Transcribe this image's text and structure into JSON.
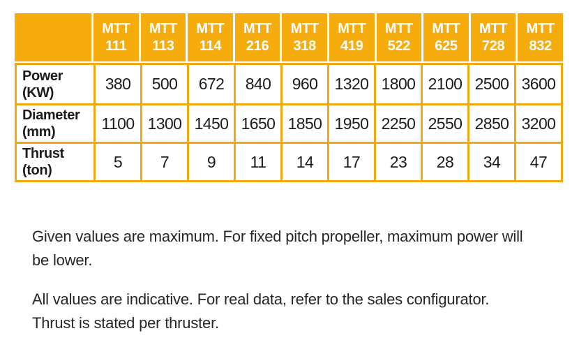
{
  "colors": {
    "header_bg": "#f7ac0e",
    "border_col": "#f2a90f",
    "header_text": "#ffffff",
    "body_text": "#1c1c1c"
  },
  "table": {
    "model_prefix": "MTT",
    "models": [
      "111",
      "113",
      "114",
      "216",
      "318",
      "419",
      "522",
      "625",
      "728",
      "832"
    ],
    "rows": [
      {
        "label_line1": "Power",
        "label_line2": "(KW)",
        "values": [
          380,
          500,
          672,
          840,
          960,
          1320,
          1800,
          2100,
          2500,
          3600
        ]
      },
      {
        "label_line1": "Diameter",
        "label_line2": "(mm)",
        "values": [
          1100,
          1300,
          1450,
          1650,
          1850,
          1950,
          2250,
          2550,
          2850,
          3200
        ]
      },
      {
        "label_line1": "Thrust",
        "label_line2": "(ton)",
        "values": [
          5,
          7,
          9,
          11,
          14,
          17,
          23,
          28,
          34,
          47
        ]
      }
    ]
  },
  "notes": [
    {
      "lines": [
        "Given values are maximum. For fixed pitch propeller, maximum power will",
        "be lower."
      ]
    },
    {
      "lines": [
        "All values are indicative. For real data, refer to the sales configurator.",
        "Thrust is stated per thruster."
      ]
    }
  ],
  "chart_data": {
    "type": "table",
    "title": "",
    "columns": [
      "",
      "MTT 111",
      "MTT 113",
      "MTT 114",
      "MTT 216",
      "MTT 318",
      "MTT 419",
      "MTT 522",
      "MTT 625",
      "MTT 728",
      "MTT 832"
    ],
    "rows": [
      [
        "Power (KW)",
        380,
        500,
        672,
        840,
        960,
        1320,
        1800,
        2100,
        2500,
        3600
      ],
      [
        "Diameter (mm)",
        1100,
        1300,
        1450,
        1650,
        1850,
        1950,
        2250,
        2550,
        2850,
        3200
      ],
      [
        "Thrust (ton)",
        5,
        7,
        9,
        11,
        14,
        17,
        23,
        28,
        34,
        47
      ]
    ]
  }
}
